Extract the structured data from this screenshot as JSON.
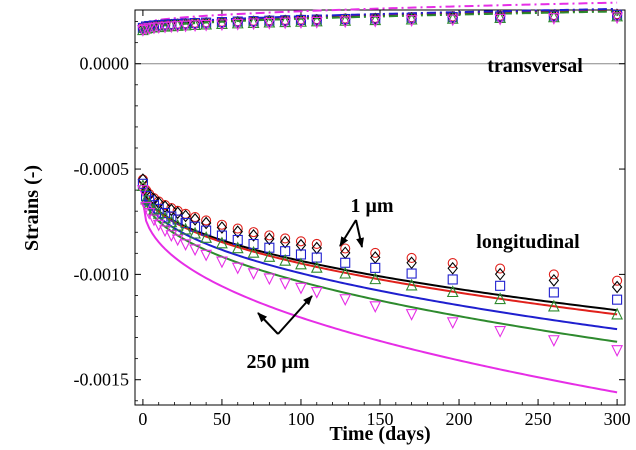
{
  "chart_data": {
    "type": "scatter",
    "title": "",
    "xlabel": "Time (days)",
    "ylabel": "Strains (-)",
    "xlim": [
      -5,
      305
    ],
    "ylim": [
      -0.00162,
      0.000255
    ],
    "grid": false,
    "x_ticks": [
      0,
      50,
      100,
      150,
      200,
      250,
      300
    ],
    "x_tick_labels": [
      "0",
      "50",
      "100",
      "150",
      "200",
      "250",
      "300"
    ],
    "y_ticks": [
      0.0,
      -0.0005,
      -0.001,
      -0.0015
    ],
    "y_tick_labels": [
      "0.0000",
      "-0.0005",
      "-0.0010",
      "-0.0015"
    ],
    "zero_line": true,
    "colors": {
      "black": "#000000",
      "red": "#e0201b",
      "blue": "#1f1fcf",
      "green": "#2e8a2e",
      "magenta": "#e62ee6"
    },
    "annotations": [
      {
        "text": "transversal"
      },
      {
        "text": "longitudinal"
      },
      {
        "text": "1 μm"
      },
      {
        "text": "250 μm"
      }
    ],
    "model_curves": {
      "longitudinal": [
        {
          "color": "black",
          "initial": -0.00057,
          "final_300": -0.00117
        },
        {
          "color": "red",
          "initial": -0.00057,
          "final_300": -0.00119
        },
        {
          "color": "blue",
          "initial": -0.00058,
          "final_300": -0.00126
        },
        {
          "color": "green",
          "initial": -0.00059,
          "final_300": -0.00132
        },
        {
          "color": "magenta",
          "initial": -0.00065,
          "final_300": -0.00156
        }
      ],
      "transversal": [
        {
          "color": "black",
          "initial": 0.000165,
          "final_300": 0.000255
        },
        {
          "color": "red",
          "initial": 0.00017,
          "final_300": 0.000258
        },
        {
          "color": "blue",
          "initial": 0.00017,
          "final_300": 0.00026
        },
        {
          "color": "green",
          "initial": 0.00016,
          "final_300": 0.000248
        },
        {
          "color": "magenta",
          "initial": 0.000185,
          "final_300": 0.00029
        }
      ]
    },
    "experimental_times": [
      0,
      2,
      4,
      7,
      10,
      14,
      18,
      22,
      27,
      33,
      40,
      50,
      60,
      70,
      80,
      90,
      100,
      110,
      128,
      147,
      170,
      196,
      226,
      260,
      300
    ],
    "experimental": {
      "longitudinal": [
        {
          "marker": "circle",
          "color": "red",
          "initial": -0.00055,
          "final_300": -0.00103
        },
        {
          "marker": "diamond",
          "color": "black",
          "initial": -0.00055,
          "final_300": -0.00106
        },
        {
          "marker": "square",
          "color": "blue",
          "initial": -0.00057,
          "final_300": -0.00112
        },
        {
          "marker": "triangle-up",
          "color": "green",
          "initial": -0.00058,
          "final_300": -0.00119
        },
        {
          "marker": "triangle-down",
          "color": "magenta",
          "initial": -0.0006,
          "final_300": -0.00136
        }
      ],
      "transversal": [
        {
          "marker": "circle",
          "color": "red",
          "initial": 0.00017,
          "final_300": 0.000235
        },
        {
          "marker": "diamond",
          "color": "black",
          "initial": 0.000165,
          "final_300": 0.00023
        },
        {
          "marker": "square",
          "color": "blue",
          "initial": 0.00017,
          "final_300": 0.000232
        },
        {
          "marker": "triangle-up",
          "color": "green",
          "initial": 0.00016,
          "final_300": 0.000225
        },
        {
          "marker": "triangle-down",
          "color": "magenta",
          "initial": 0.00016,
          "final_300": 0.00022
        }
      ]
    }
  }
}
